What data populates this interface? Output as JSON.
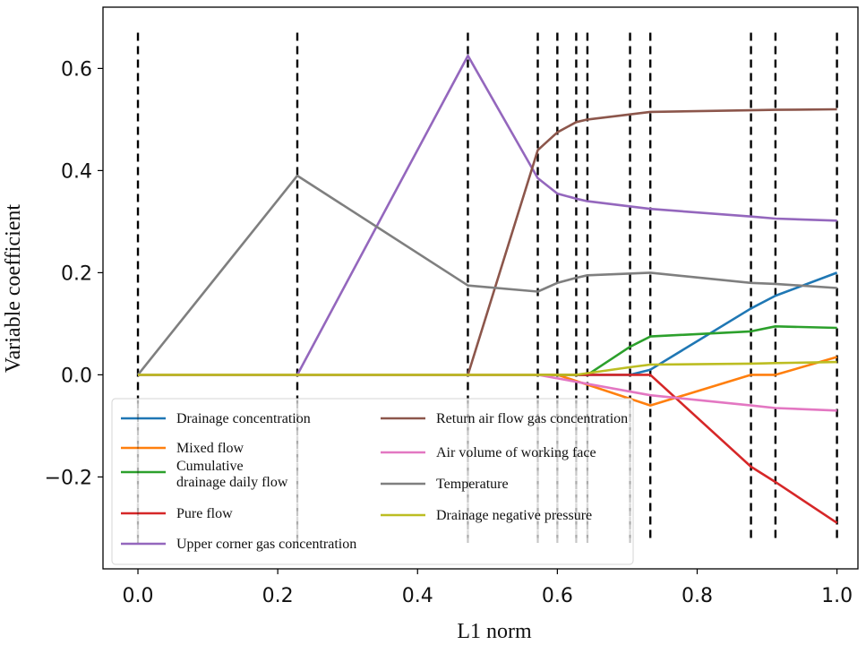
{
  "chart_data": {
    "type": "line",
    "title": "",
    "xlabel": "L1 norm",
    "ylabel": "Variable coefficient",
    "xlim": [
      -0.05,
      1.03
    ],
    "ylim": [
      -0.38,
      0.72
    ],
    "xticks": [
      0.0,
      0.2,
      0.4,
      0.6,
      0.8,
      1.0
    ],
    "xtick_labels": [
      "0.0",
      "0.2",
      "0.4",
      "0.6",
      "0.8",
      "1.0"
    ],
    "yticks": [
      -0.2,
      0.0,
      0.2,
      0.4,
      0.6
    ],
    "ytick_labels": [
      "−0.2",
      "0.0",
      "0.2",
      "0.4",
      "0.6"
    ],
    "vlines": [
      0.0,
      0.228,
      0.472,
      0.572,
      0.6,
      0.627,
      0.643,
      0.704,
      0.733,
      0.877,
      0.912,
      1.0
    ],
    "vline_color": "#000000",
    "legend_position": "lower-left",
    "series": [
      {
        "name": "Drainage concentration",
        "color": "#1f77b4",
        "x": [
          0.0,
          0.704,
          0.733,
          0.877,
          0.912,
          1.0
        ],
        "y": [
          0.0,
          0.0,
          0.01,
          0.13,
          0.155,
          0.2
        ]
      },
      {
        "name": "Mixed flow",
        "color": "#ff7f0e",
        "x": [
          0.0,
          0.6,
          0.733,
          0.877,
          0.912,
          1.0
        ],
        "y": [
          0.0,
          0.0,
          -0.06,
          0.0,
          0.0,
          0.035
        ]
      },
      {
        "name": "Cumulative drainage daily flow",
        "color": "#2ca02c",
        "x": [
          0.0,
          0.643,
          0.704,
          0.733,
          0.877,
          0.912,
          1.0
        ],
        "y": [
          0.0,
          0.0,
          0.055,
          0.075,
          0.085,
          0.095,
          0.092
        ]
      },
      {
        "name": "Pure flow",
        "color": "#d62728",
        "x": [
          0.0,
          0.704,
          0.733,
          0.877,
          0.912,
          1.0
        ],
        "y": [
          0.0,
          0.0,
          0.0,
          -0.18,
          -0.21,
          -0.29
        ]
      },
      {
        "name": "Upper corner gas concentration",
        "color": "#9467bd",
        "x": [
          0.0,
          0.228,
          0.472,
          0.572,
          0.6,
          0.627,
          0.643,
          0.733,
          0.877,
          0.912,
          1.0
        ],
        "y": [
          0.0,
          0.0,
          0.625,
          0.385,
          0.355,
          0.345,
          0.34,
          0.325,
          0.31,
          0.306,
          0.302
        ]
      },
      {
        "name": "Return air flow gas concentration",
        "color": "#8c564b",
        "x": [
          0.0,
          0.472,
          0.572,
          0.6,
          0.627,
          0.643,
          0.704,
          0.733,
          0.877,
          0.912,
          1.0
        ],
        "y": [
          0.0,
          0.0,
          0.44,
          0.475,
          0.495,
          0.5,
          0.51,
          0.515,
          0.518,
          0.519,
          0.52
        ]
      },
      {
        "name": "Air volume of working face",
        "color": "#e377c2",
        "x": [
          0.0,
          0.572,
          0.733,
          0.877,
          0.912,
          1.0
        ],
        "y": [
          0.0,
          0.0,
          -0.04,
          -0.06,
          -0.065,
          -0.07
        ]
      },
      {
        "name": "Temperature",
        "color": "#7f7f7f",
        "x": [
          0.0,
          0.228,
          0.472,
          0.572,
          0.6,
          0.627,
          0.643,
          0.733,
          0.877,
          0.912,
          1.0
        ],
        "y": [
          0.0,
          0.39,
          0.175,
          0.163,
          0.18,
          0.19,
          0.195,
          0.2,
          0.18,
          0.178,
          0.17
        ]
      },
      {
        "name": "Drainage negative pressure",
        "color": "#bcbd22",
        "x": [
          0.0,
          0.627,
          0.704,
          0.733,
          0.877,
          0.912,
          1.0
        ],
        "y": [
          0.0,
          0.0,
          0.015,
          0.02,
          0.022,
          0.023,
          0.025
        ]
      }
    ],
    "legend": {
      "left": [
        {
          "series": 0,
          "lines": [
            "Drainage concentration"
          ]
        },
        {
          "series": 1,
          "lines": [
            "Mixed flow"
          ]
        },
        {
          "series": 2,
          "lines": [
            "Cumulative",
            "drainage daily flow"
          ]
        },
        {
          "series": 3,
          "lines": [
            "Pure flow"
          ]
        },
        {
          "series": 4,
          "lines": [
            "Upper corner gas concentration"
          ]
        }
      ],
      "right": [
        {
          "series": 5,
          "lines": [
            "Return air flow gas concentration"
          ]
        },
        {
          "series": 6,
          "lines": [
            "Air volume of working face"
          ]
        },
        {
          "series": 7,
          "lines": [
            "Temperature"
          ]
        },
        {
          "series": 8,
          "lines": [
            "Drainage negative pressure"
          ]
        }
      ]
    }
  }
}
